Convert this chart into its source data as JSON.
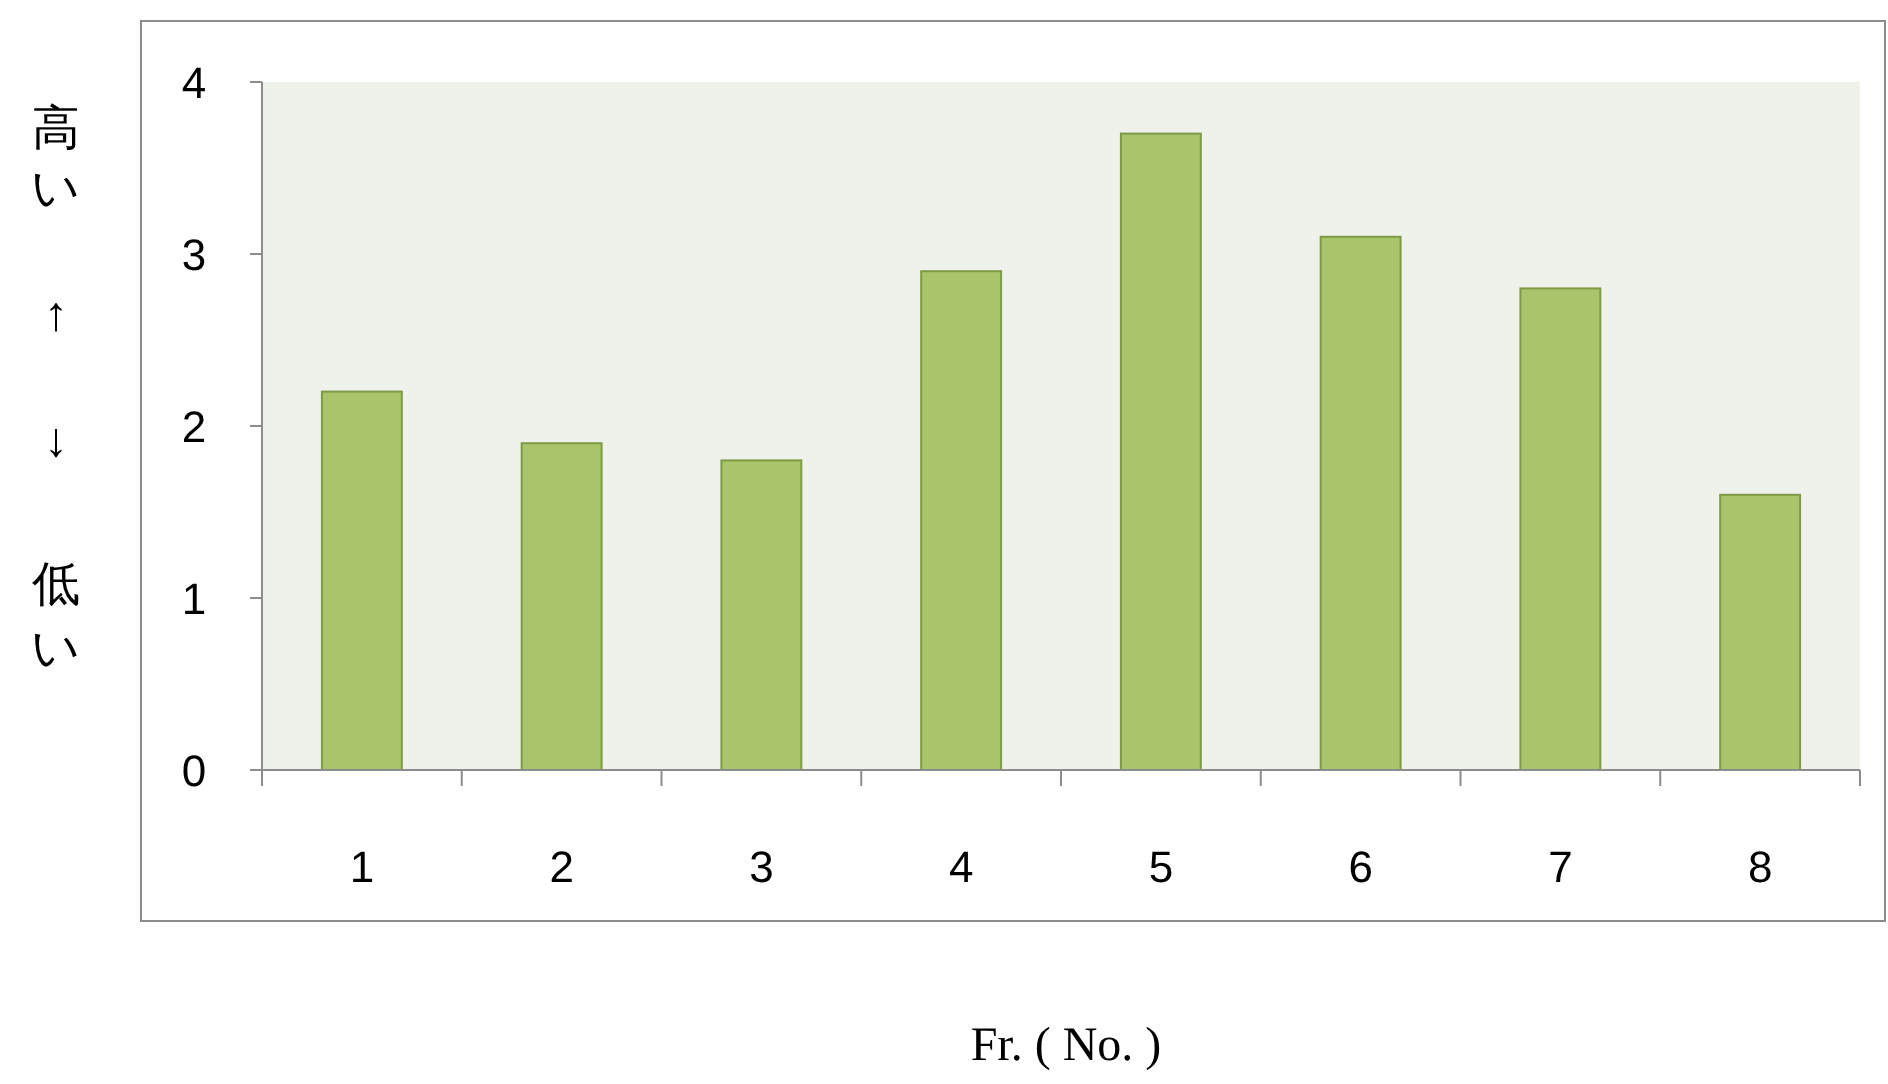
{
  "chart_data": {
    "type": "bar",
    "xlabel": "Fr. ( No. )",
    "ylabel": "高い ↑ ↓ 低い",
    "categories": [
      "1",
      "2",
      "3",
      "4",
      "5",
      "6",
      "7",
      "8"
    ],
    "values": [
      2.2,
      1.9,
      1.8,
      2.9,
      3.7,
      3.1,
      2.8,
      1.6
    ],
    "color": "#a9c46a",
    "ylim": [
      0,
      4
    ],
    "yticks": [
      0,
      1,
      2,
      3,
      4
    ]
  }
}
